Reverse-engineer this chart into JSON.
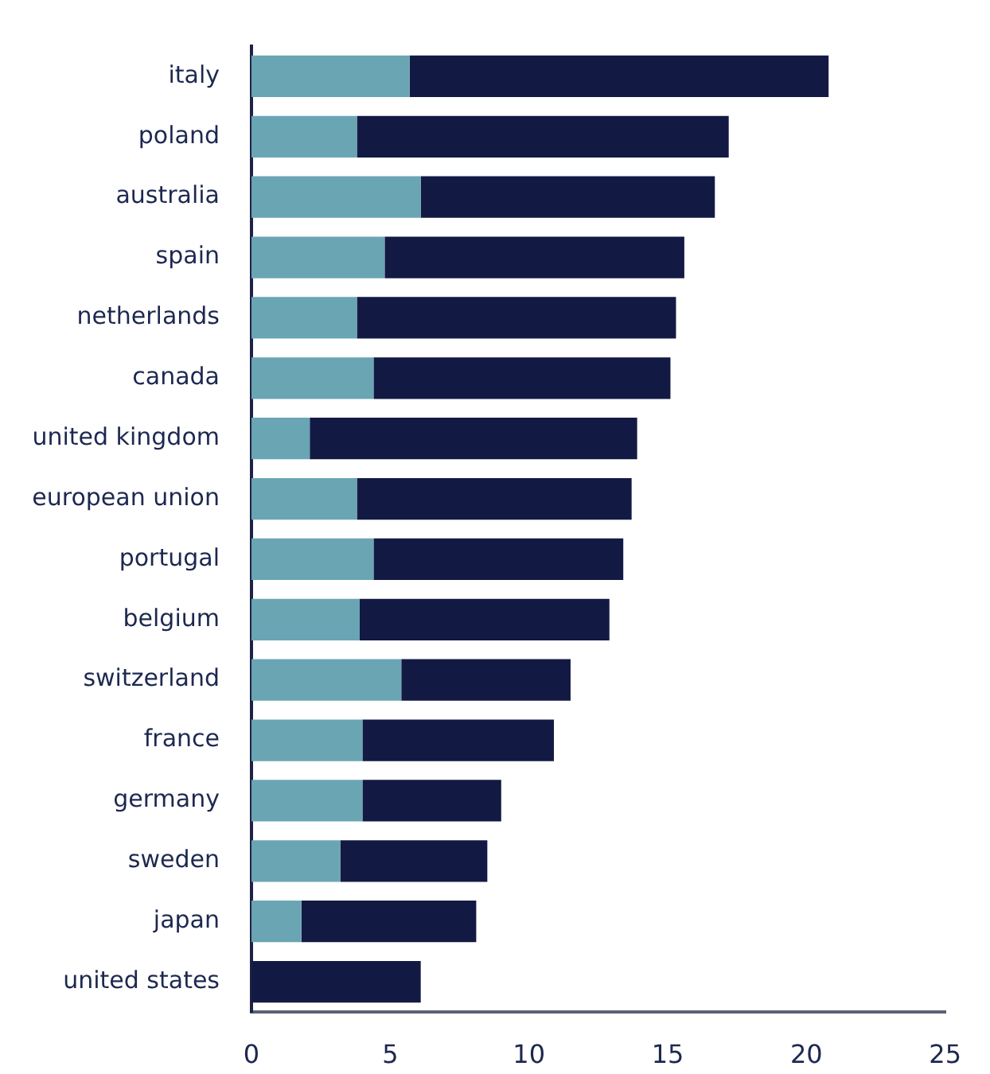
{
  "chart_data": {
    "type": "bar",
    "orientation": "horizontal",
    "stacked": true,
    "categories": [
      "italy",
      "poland",
      "australia",
      "spain",
      "netherlands",
      "canada",
      "united kingdom",
      "european union",
      "portugal",
      "belgium",
      "switzerland",
      "france",
      "germany",
      "sweden",
      "japan",
      "united states"
    ],
    "series": [
      {
        "color": "#6aa5b3",
        "values": [
          5.7,
          3.8,
          6.1,
          4.8,
          3.8,
          4.4,
          2.1,
          3.8,
          4.4,
          3.9,
          5.4,
          4.0,
          4.0,
          3.2,
          1.8,
          null
        ]
      },
      {
        "color": "#121a44",
        "values": [
          15.1,
          13.4,
          10.6,
          10.8,
          11.5,
          10.7,
          11.8,
          9.9,
          9.0,
          9.0,
          6.1,
          6.9,
          5.0,
          5.3,
          6.3,
          6.1
        ]
      }
    ],
    "xlim": [
      0,
      25
    ],
    "xticks": [
      0,
      5,
      10,
      15,
      20,
      25
    ],
    "grid": false,
    "legend": false
  }
}
